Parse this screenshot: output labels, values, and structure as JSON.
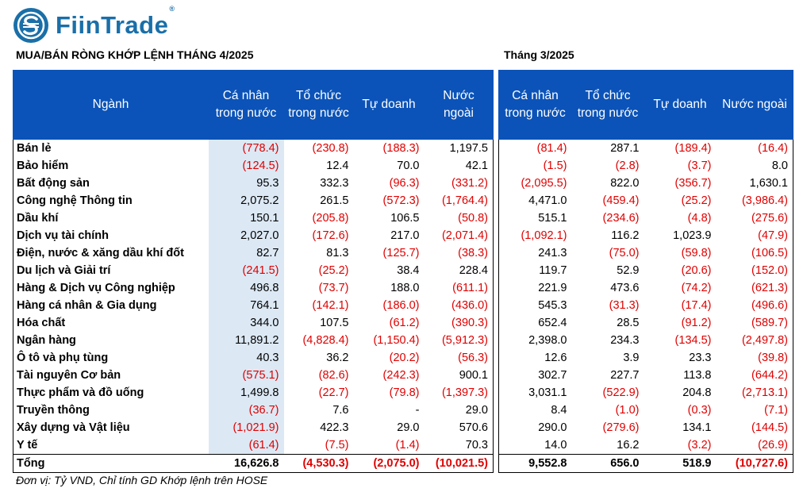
{
  "brand": {
    "name": "FiinTrade",
    "reg": "®"
  },
  "title_left": "MUA/BÁN RÒNG KHỚP LỆNH  THÁNG 4/2025",
  "title_right": "Tháng 3/2025",
  "headers_left": [
    "Ngành",
    "Cá nhân trong nước",
    "Tổ chức trong nước",
    "Tự doanh",
    "Nước ngoài"
  ],
  "headers_right": [
    "Cá nhân trong nước",
    "Tổ chức trong nước",
    "Tự doanh",
    "Nước ngoài"
  ],
  "rows": [
    {
      "sector": "Bán lẻ",
      "apr": [
        "(778.4)",
        "(230.8)",
        "(188.3)",
        "1,197.5"
      ],
      "mar": [
        "(81.4)",
        "287.1",
        "(189.4)",
        "(16.4)"
      ]
    },
    {
      "sector": "Bảo hiểm",
      "apr": [
        "(124.5)",
        "12.4",
        "70.0",
        "42.1"
      ],
      "mar": [
        "(1.5)",
        "(2.8)",
        "(3.7)",
        "8.0"
      ]
    },
    {
      "sector": "Bất động sản",
      "apr": [
        "95.3",
        "332.3",
        "(96.3)",
        "(331.2)"
      ],
      "mar": [
        "(2,095.5)",
        "822.0",
        "(356.7)",
        "1,630.1"
      ]
    },
    {
      "sector": "Công nghệ Thông tin",
      "apr": [
        "2,075.2",
        "261.5",
        "(572.3)",
        "(1,764.4)"
      ],
      "mar": [
        "4,471.0",
        "(459.4)",
        "(25.2)",
        "(3,986.4)"
      ]
    },
    {
      "sector": "Dầu khí",
      "apr": [
        "150.1",
        "(205.8)",
        "106.5",
        "(50.8)"
      ],
      "mar": [
        "515.1",
        "(234.6)",
        "(4.8)",
        "(275.6)"
      ]
    },
    {
      "sector": "Dịch vụ tài chính",
      "apr": [
        "2,027.0",
        "(172.6)",
        "217.0",
        "(2,071.4)"
      ],
      "mar": [
        "(1,092.1)",
        "116.2",
        "1,023.9",
        "(47.9)"
      ]
    },
    {
      "sector": "Điện, nước & xăng dầu khí đốt",
      "apr": [
        "82.7",
        "81.3",
        "(125.7)",
        "(38.3)"
      ],
      "mar": [
        "241.3",
        "(75.0)",
        "(59.8)",
        "(106.5)"
      ]
    },
    {
      "sector": "Du lịch và Giải trí",
      "apr": [
        "(241.5)",
        "(25.2)",
        "38.4",
        "228.4"
      ],
      "mar": [
        "119.7",
        "52.9",
        "(20.6)",
        "(152.0)"
      ]
    },
    {
      "sector": "Hàng & Dịch vụ Công nghiệp",
      "apr": [
        "496.8",
        "(73.7)",
        "188.0",
        "(611.1)"
      ],
      "mar": [
        "221.9",
        "473.6",
        "(74.2)",
        "(621.3)"
      ]
    },
    {
      "sector": "Hàng cá nhân & Gia dụng",
      "apr": [
        "764.1",
        "(142.1)",
        "(186.0)",
        "(436.0)"
      ],
      "mar": [
        "545.3",
        "(31.3)",
        "(17.4)",
        "(496.6)"
      ]
    },
    {
      "sector": "Hóa chất",
      "apr": [
        "344.0",
        "107.5",
        "(61.2)",
        "(390.3)"
      ],
      "mar": [
        "652.4",
        "28.5",
        "(91.2)",
        "(589.7)"
      ]
    },
    {
      "sector": "Ngân hàng",
      "apr": [
        "11,891.2",
        "(4,828.4)",
        "(1,150.4)",
        "(5,912.3)"
      ],
      "mar": [
        "2,398.0",
        "234.3",
        "(134.5)",
        "(2,497.8)"
      ]
    },
    {
      "sector": "Ô tô và phụ tùng",
      "apr": [
        "40.3",
        "36.2",
        "(20.2)",
        "(56.3)"
      ],
      "mar": [
        "12.6",
        "3.9",
        "23.3",
        "(39.8)"
      ]
    },
    {
      "sector": "Tài nguyên Cơ bản",
      "apr": [
        "(575.1)",
        "(82.6)",
        "(242.3)",
        "900.1"
      ],
      "mar": [
        "302.7",
        "227.7",
        "113.8",
        "(644.2)"
      ]
    },
    {
      "sector": "Thực phẩm và đồ uống",
      "apr": [
        "1,499.8",
        "(22.7)",
        "(79.8)",
        "(1,397.3)"
      ],
      "mar": [
        "3,031.1",
        "(522.9)",
        "204.8",
        "(2,713.1)"
      ]
    },
    {
      "sector": "Truyền thông",
      "apr": [
        "(36.7)",
        "7.6",
        "-",
        "29.0"
      ],
      "mar": [
        "8.4",
        "(1.0)",
        "(0.3)",
        "(7.1)"
      ]
    },
    {
      "sector": "Xây dựng và Vật liệu",
      "apr": [
        "(1,021.9)",
        "422.3",
        "29.0",
        "570.6"
      ],
      "mar": [
        "290.0",
        "(279.6)",
        "134.1",
        "(144.5)"
      ]
    },
    {
      "sector": "Y tế",
      "apr": [
        "(61.4)",
        "(7.5)",
        "(1.4)",
        "70.3"
      ],
      "mar": [
        "14.0",
        "16.2",
        "(3.2)",
        "(26.9)"
      ]
    }
  ],
  "total": {
    "sector": "Tổng",
    "apr": [
      "16,626.8",
      "(4,530.3)",
      "(2,075.0)",
      "(10,021.5)"
    ],
    "mar": [
      "9,552.8",
      "656.0",
      "518.9",
      "(10,727.6)"
    ]
  },
  "footnote": "Đơn vị: Tỷ VND, Chỉ tính GD Khớp lệnh trên HOSE",
  "colors": {
    "header_bg": "#0b53b8",
    "highlight": "#dce9f5",
    "negative": "#e00000",
    "brand": "#1a6fa8"
  },
  "icons": {
    "logo": "fiintrade-logo-icon"
  }
}
